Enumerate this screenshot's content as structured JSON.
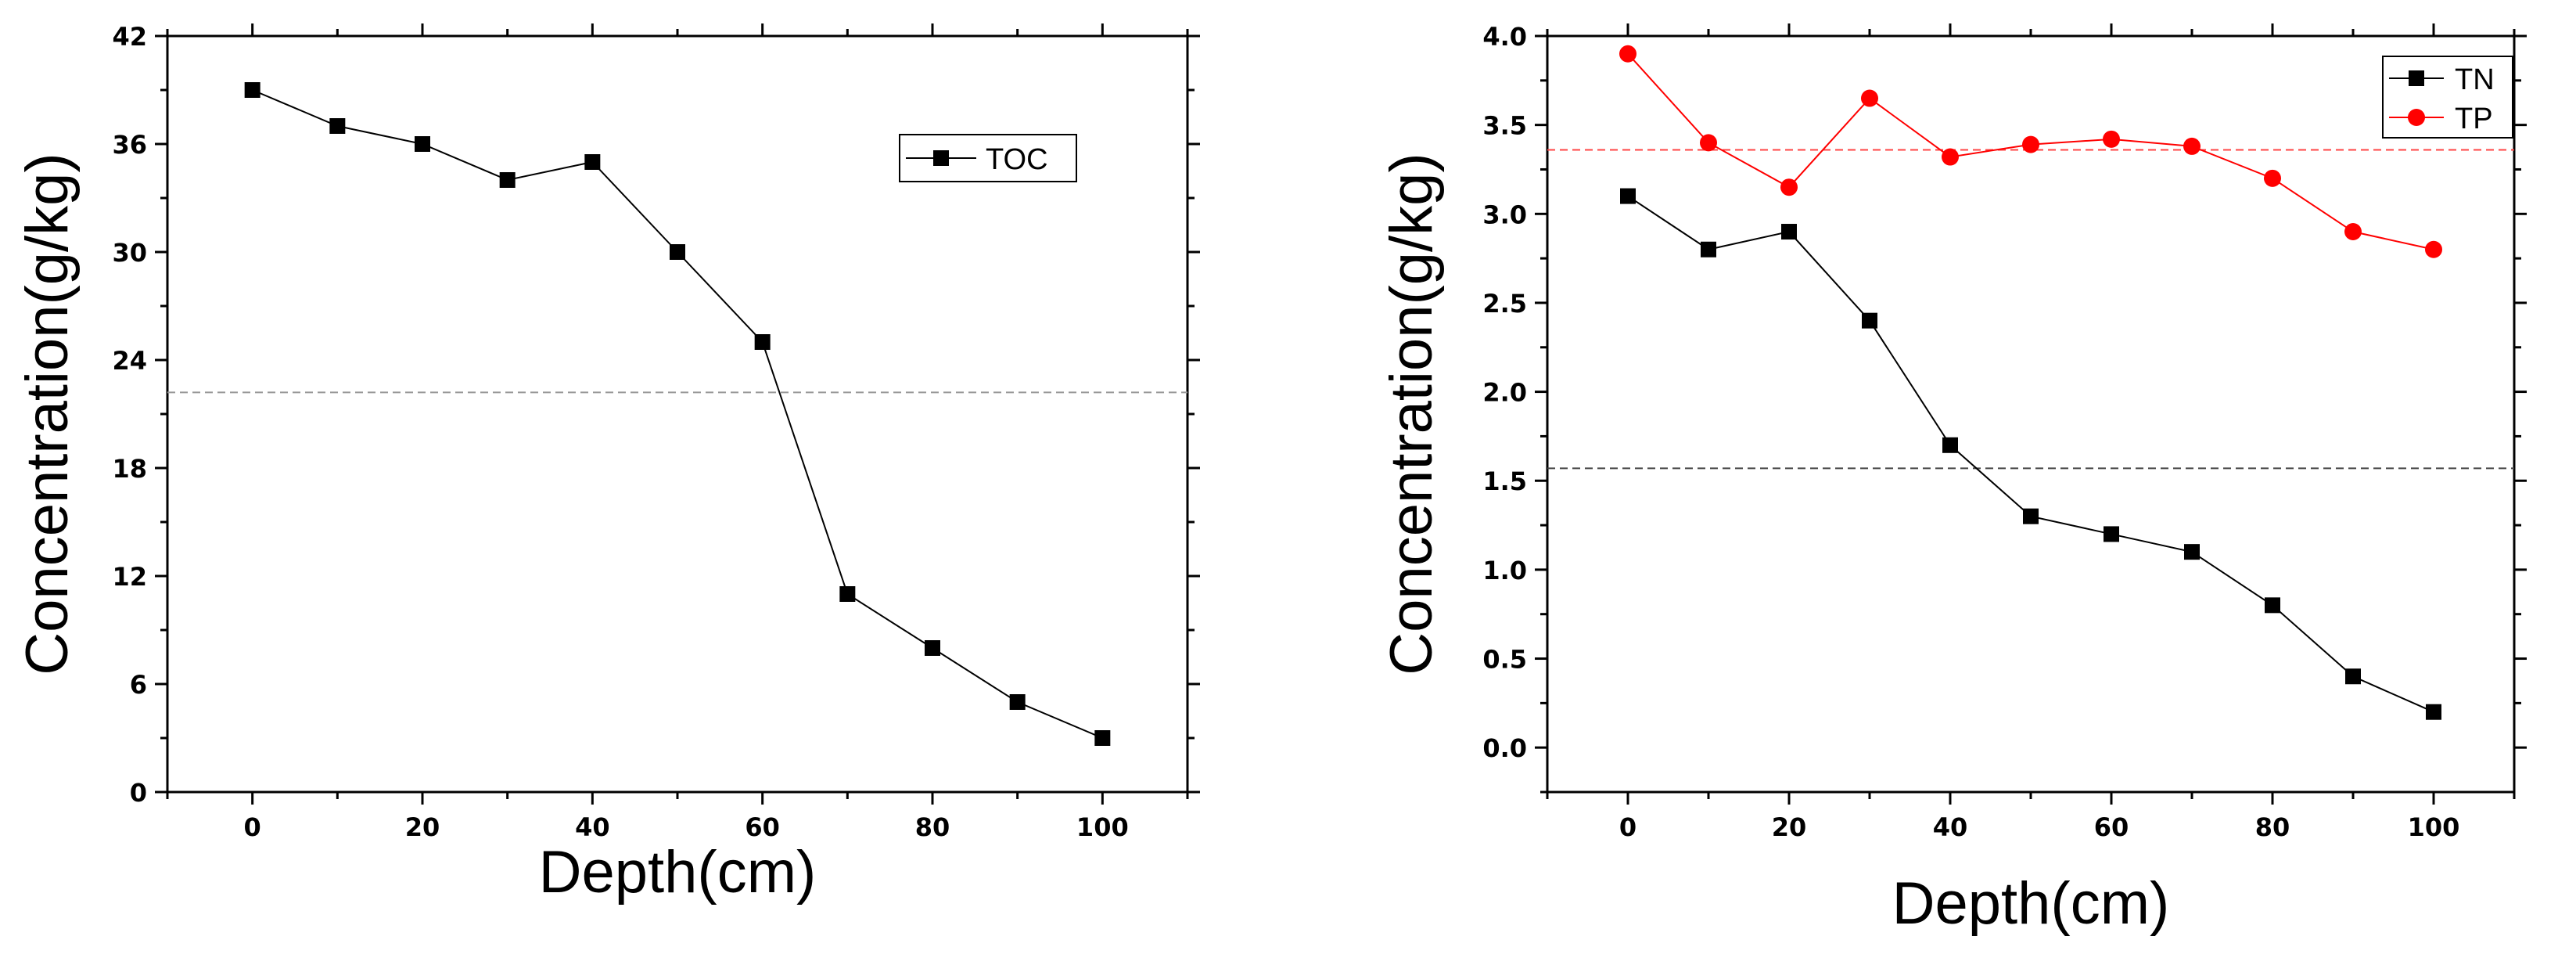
{
  "chart_data": [
    {
      "type": "line",
      "xlabel": "Depth(cm)",
      "ylabel": "Concentration(g/kg)",
      "xlim": [
        -10,
        110
      ],
      "ylim": [
        0,
        42
      ],
      "xticks": [
        0,
        20,
        40,
        60,
        80,
        100
      ],
      "yticks": [
        0,
        6,
        12,
        18,
        24,
        30,
        36,
        42
      ],
      "legend_position": "top-right",
      "grid": false,
      "series": [
        {
          "name": "TOC",
          "color": "#000000",
          "marker": "square",
          "x": [
            0,
            10,
            20,
            30,
            40,
            50,
            60,
            70,
            80,
            90,
            100
          ],
          "values": [
            39,
            37,
            36,
            34,
            35,
            30,
            25,
            11,
            8,
            5,
            3
          ]
        }
      ],
      "reference_lines": [
        {
          "value": 22.2,
          "color": "#999999",
          "style": "dashed"
        }
      ]
    },
    {
      "type": "line",
      "xlabel": "Depth(cm)",
      "ylabel": "Concentration(g/kg)",
      "xlim": [
        -10,
        110
      ],
      "ylim": [
        -0.25,
        4.0
      ],
      "xticks": [
        0,
        20,
        40,
        60,
        80,
        100
      ],
      "yticks": [
        "0.0",
        "0.5",
        "1.0",
        "1.5",
        "2.0",
        "2.5",
        "3.0",
        "3.5",
        "4.0"
      ],
      "legend_position": "top-right",
      "grid": false,
      "series": [
        {
          "name": "TN",
          "color": "#000000",
          "marker": "square",
          "x": [
            0,
            10,
            20,
            30,
            40,
            50,
            60,
            70,
            80,
            90,
            100
          ],
          "values": [
            3.1,
            2.8,
            2.9,
            2.4,
            1.7,
            1.3,
            1.2,
            1.1,
            0.8,
            0.4,
            0.2
          ]
        },
        {
          "name": "TP",
          "color": "#ff0000",
          "marker": "circle",
          "x": [
            0,
            10,
            20,
            30,
            40,
            50,
            60,
            70,
            80,
            90,
            100
          ],
          "values": [
            3.9,
            3.4,
            3.15,
            3.65,
            3.32,
            3.39,
            3.42,
            3.38,
            3.2,
            2.9,
            2.8
          ]
        }
      ],
      "reference_lines": [
        {
          "value": 1.57,
          "color": "#444444",
          "style": "dashed"
        },
        {
          "value": 3.36,
          "color": "#ff4444",
          "style": "dashed"
        }
      ]
    }
  ]
}
